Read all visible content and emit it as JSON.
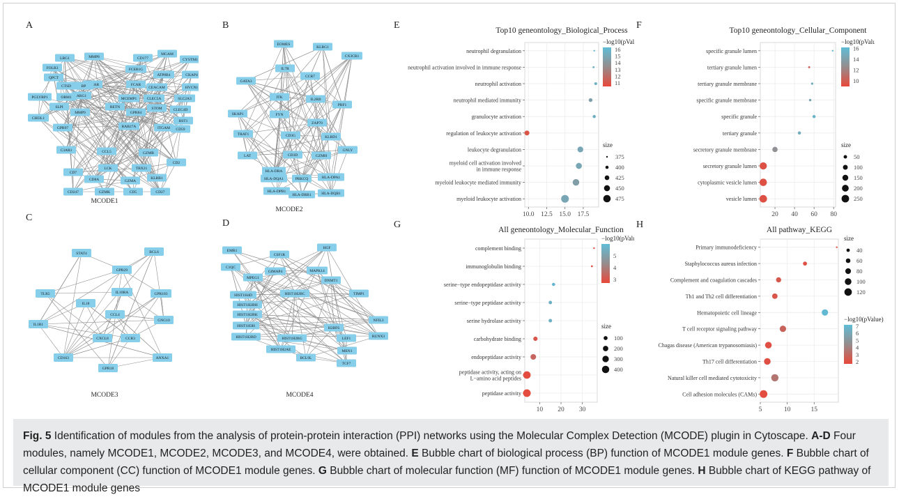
{
  "panels": {
    "A": {
      "letter": "A",
      "caption": "MCODE1"
    },
    "B": {
      "letter": "B",
      "caption": "MCODE2"
    },
    "C": {
      "letter": "C",
      "caption": "MCODE3"
    },
    "D": {
      "letter": "D",
      "caption": "MCODE4"
    },
    "E": {
      "letter": "E"
    },
    "F": {
      "letter": "F"
    },
    "G": {
      "letter": "G"
    },
    "H": {
      "letter": "H"
    }
  },
  "networks": {
    "A": [
      "LRG1",
      "MMP8",
      "CD177",
      "MGAM",
      "CYSTM1",
      "FOLR3",
      "QPCT",
      "OSCAR",
      "FCER1G",
      "ATP8B4",
      "CKAP4",
      "CTSD",
      "BP",
      "FCAR",
      "HVCN1",
      "PGLYRP1",
      "ORM1",
      "CEACAM",
      "SLC2A3",
      "ARG1",
      "MCEMP1",
      "CLEC5A",
      "CLEC4D",
      "SLPI",
      "RETN",
      "STOM",
      "BST1",
      "CHI3L1",
      "MMP9",
      "GPR84",
      "CD59",
      "GPR97",
      "RAB27A",
      "ITGAM",
      "C3AR1",
      "CCL5",
      "GZMB",
      "CD2",
      "CD7",
      "LCK",
      "TBX21",
      "CD8A",
      "GZMA",
      "KLRB1",
      "CD247",
      "GZMK",
      "CD5",
      "CD27",
      "CD3E"
    ],
    "B": [
      "EOMES",
      "KLRG1",
      "CX3CR1",
      "IL7R",
      "GATA3",
      "CCR7",
      "ITK",
      "IL2RB",
      "PRF1",
      "SKAP1",
      "FYN",
      "ZAP70",
      "TRAT1",
      "CD3G",
      "KLRD1",
      "GNLY",
      "LAT",
      "CD3D",
      "GZMH",
      "HLA-DRA",
      "HLA-DQA1",
      "PRKCQ",
      "HLA-DPA1",
      "HLA-DPB1",
      "HLA-DRB1",
      "HLA-DQB1"
    ],
    "C": [
      "STAT4",
      "BCL6",
      "GPR29",
      "TLR5",
      "IL10RA",
      "GPR183",
      "IL18",
      "CCL4",
      "GNG10",
      "IL1R1",
      "CXCL8",
      "CCR3",
      "CD163",
      "ANXA1",
      "GPR18"
    ],
    "D": [
      "EMR1",
      "HGF",
      "C1QC",
      "CSF1R",
      "MPEG1",
      "GIMAP4",
      "MAPK14",
      "DNMT1",
      "TIMP1",
      "HIST1H4D",
      "HIST1H2BH",
      "HIST1H2BK",
      "HIST1H3H",
      "HIST1H2BD",
      "HIST1H2BC",
      "H2BFS",
      "HIST1H2BG",
      "HIST1H2AE",
      "LEF1",
      "MEN1",
      "NFIL3",
      "RUNX3",
      "BCL9L",
      "TCF7"
    ]
  },
  "chart_data": [
    {
      "id": "E",
      "type": "scatter",
      "title": "Top10 geneontology_Biological_Process",
      "xlabel": "Enrichment Ratio",
      "xlim": [
        9.5,
        19.6
      ],
      "xticks": [
        "10.0",
        "12.5",
        "15.0",
        "17.5"
      ],
      "xtick_values": [
        10,
        12.5,
        15,
        17.5
      ],
      "categories": [
        "neutrophil degranulation",
        "neutrophil activation involved in immune response",
        "neutrophil activation",
        "neutrophil mediated immunity",
        "granulocyte activation",
        "regulation of leukocyte activation",
        "leukocyte degranulation",
        "myeloid cell activation involved|in immune response",
        "myeloid leukocyte mediated immunity",
        "myeloid leukocyte activation"
      ],
      "x": [
        19.0,
        18.9,
        19.2,
        18.5,
        19.0,
        9.8,
        17.1,
        16.9,
        16.5,
        15.0
      ],
      "size": [
        375,
        380,
        395,
        410,
        400,
        430,
        445,
        450,
        460,
        480
      ],
      "color": [
        16,
        15.5,
        15.5,
        14.5,
        15.5,
        11,
        15,
        15,
        14.5,
        15
      ],
      "color_legend": {
        "title": "−log10(pValue)",
        "ticks": [
          "16",
          "15",
          "14",
          "13",
          "12",
          "11"
        ],
        "range": [
          10.5,
          16.3
        ]
      },
      "size_legend": {
        "title": "size",
        "values": [
          "375",
          "400",
          "425",
          "450",
          "475"
        ]
      }
    },
    {
      "id": "F",
      "type": "scatter",
      "title": "Top10 geneontology_Cellular_Component",
      "xlabel": "Enrichment Ratio",
      "xlim": [
        5,
        82
      ],
      "xticks": [
        "20",
        "40",
        "60",
        "80"
      ],
      "xtick_values": [
        20,
        40,
        60,
        80
      ],
      "categories": [
        "specific granule lumen",
        "tertiary granule lumen",
        "tertiary granule membrane",
        "specific granule membrane",
        "specific granule",
        "tertiary granule",
        "secretory granule membrane",
        "secretory granule lumen",
        "cytoplasmic vesicle lumen",
        "vesicle lumen"
      ],
      "x": [
        79,
        55,
        58,
        56,
        60,
        45,
        20,
        8,
        8,
        8
      ],
      "size": [
        10,
        15,
        20,
        22,
        40,
        40,
        120,
        230,
        240,
        250
      ],
      "color": [
        16,
        10,
        15,
        14.5,
        15.5,
        15,
        13,
        9.5,
        9.5,
        9.5
      ],
      "color_legend": {
        "title": "−log10(pValue)",
        "ticks": [
          "16",
          "14",
          "12",
          "10"
        ],
        "range": [
          9,
          16.2
        ]
      },
      "size_legend": {
        "title": "size",
        "values": [
          "50",
          "100",
          "150",
          "200",
          "250"
        ]
      }
    },
    {
      "id": "G",
      "type": "scatter",
      "title": "All geneontology_Molecular_Function",
      "xlabel": "Enrichment Ratio",
      "xlim": [
        3,
        37
      ],
      "xticks": [
        "10",
        "20",
        "30"
      ],
      "xtick_values": [
        10,
        20,
        30
      ],
      "categories": [
        "complement binding",
        "immunoglobulin binding",
        "serine−type endopeptidase activity",
        "serine−type peptidase activity",
        "serine hydrolase activity",
        "carbohydrate binding",
        "endopeptidase activity",
        "peptidase activity, acting on|L−amino acid peptides",
        "peptidase activity"
      ],
      "x": [
        35.5,
        34.5,
        16.5,
        15,
        15,
        8,
        7,
        4,
        4
      ],
      "size": [
        10,
        15,
        60,
        70,
        75,
        120,
        220,
        420,
        440
      ],
      "color": [
        2.9,
        2.9,
        5.8,
        5.6,
        5.6,
        3,
        3.4,
        2.8,
        2.8
      ],
      "color_legend": {
        "title": "−log10(pValue)",
        "ticks": [
          "5",
          "4",
          "3"
        ],
        "range": [
          2.7,
          6
        ]
      },
      "size_legend": {
        "title": "size",
        "values": [
          "100",
          "200",
          "300",
          "400"
        ]
      }
    },
    {
      "id": "H",
      "type": "scatter",
      "title": "All pathway_KEGG",
      "xlabel": "",
      "xlim": [
        5,
        19.5
      ],
      "xticks": [
        "5",
        "10",
        "15"
      ],
      "xtick_values": [
        5,
        10,
        15
      ],
      "categories": [
        "Primary immunodeficiency",
        "Staphylococcus aureus infection",
        "Complement and coagulation cascades",
        "Th1 and Th2 cell differentiation",
        "Hematopoietic cell lineage",
        "T cell receptor signaling pathway",
        "Chagas disease (American trypanosomiasis)",
        "Th17 cell differentiation",
        "Natural killer cell mediated cytotoxicity",
        "Cell adhesion molecules (CAMs)"
      ],
      "x": [
        19.2,
        13.3,
        8.4,
        7.7,
        17.0,
        9.2,
        6.5,
        6.3,
        7.7,
        5.6
      ],
      "size": [
        20,
        50,
        70,
        75,
        95,
        95,
        100,
        100,
        115,
        125
      ],
      "color": [
        2,
        2,
        2.3,
        2.2,
        7,
        2.8,
        2,
        2,
        3.5,
        1.9
      ],
      "color_legend": {
        "title": "−log10(pValue)",
        "ticks": [
          "7",
          "6",
          "5",
          "4",
          "3",
          "2"
        ],
        "range": [
          1.7,
          7.2
        ]
      },
      "size_legend": {
        "title": "size",
        "values": [
          "40",
          "60",
          "80",
          "100",
          "120"
        ]
      }
    }
  ],
  "caption": {
    "fig_label": "Fig. 5",
    "text1": "  Identification of modules from the analysis of protein-protein interaction (PPI) networks using the Molecular Complex Detection (MCODE) plugin in Cytoscape. ",
    "b1": "A-D",
    "text2": " Four modules, namely MCODE1, MCODE2, MCODE3, and MCODE4, were obtained. ",
    "b2": "E",
    "text3": " Bubble chart of biological process (BP) function of MCODE1 module genes. ",
    "b3": "F",
    "text4": " Bubble chart of cellular component (CC) function of MCODE1 module genes. ",
    "b4": "G",
    "text5": " Bubble chart of molecular function (MF) function of MCODE1 module genes. ",
    "b5": "H",
    "text6": " Bubble chart of KEGG pathway of MCODE1 module genes"
  }
}
